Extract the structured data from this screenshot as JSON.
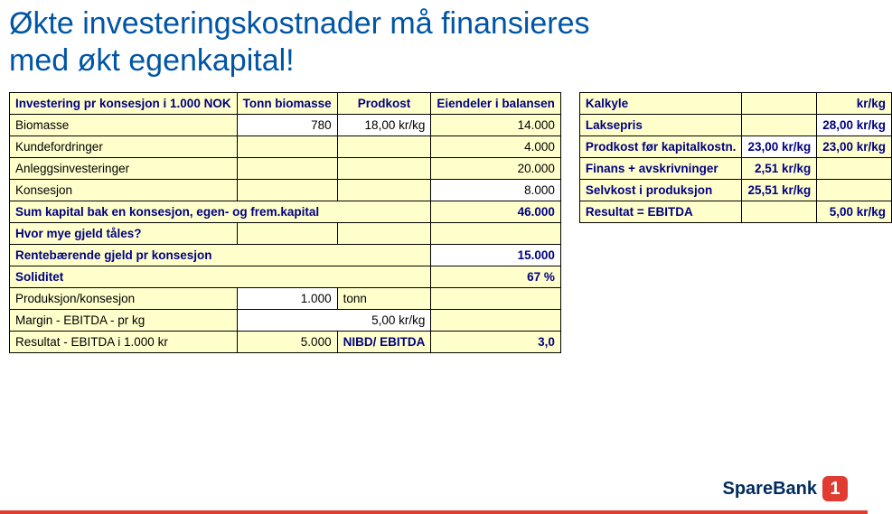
{
  "title_line1": "Økte investeringskostnader må finansieres",
  "title_line2": "med økt egenkapital!",
  "left": {
    "hdr_a": "Investering pr konsesjon i 1.000 NOK",
    "hdr_b": "Tonn biomasse",
    "hdr_c": "Prodkost",
    "hdr_d": "Eiendeler i balansen",
    "r1_a": "Biomasse",
    "r1_b": "780",
    "r1_c": "18,00 kr/kg",
    "r1_d": "14.000",
    "r2_a": "Kundefordringer",
    "r2_d": "4.000",
    "r3_a": "Anleggsinvesteringer",
    "r3_d": "20.000",
    "r4_a": "Konsesjon",
    "r4_d": "8.000",
    "r5_a": "Sum kapital bak en konsesjon, egen- og frem.kapital",
    "r5_d": "46.000",
    "r6_a": "Hvor mye gjeld tåles?",
    "r7_a": "Rentebærende gjeld pr konsesjon",
    "r7_d": "15.000",
    "r8_a": "Soliditet",
    "r8_d": "67 %",
    "r9_a": "Produksjon/konsesjon",
    "r9_b": "1.000",
    "r9_c": "tonn",
    "r10_a": "Margin - EBITDA - pr kg",
    "r10_b": "5,00 kr/kg",
    "r11_a": "Resultat - EBITDA i 1.000 kr",
    "r11_b": "5.000",
    "r11_c": "NIBD/ EBITDA",
    "r11_d": "3,0"
  },
  "right": {
    "hdr_a": "Kalkyle",
    "hdr_c": "kr/kg",
    "r1_a": "Laksepris",
    "r1_c": "28,00 kr/kg",
    "r2_a": "Prodkost før kapitalkostn.",
    "r2_b": "23,00 kr/kg",
    "r2_c": "23,00 kr/kg",
    "r3_a": "Finans + avskrivninger",
    "r3_b": "2,51 kr/kg",
    "r4_a": "Selvkost i produksjon",
    "r4_b": "25,51 kr/kg",
    "r5_a": "Resultat = EBITDA",
    "r5_c": "5,00 kr/kg"
  },
  "brand": {
    "name": "SpareBank",
    "badge": "1"
  },
  "colors": {
    "title": "#0055a5",
    "cell_bg": "#ffffcc",
    "cell_white": "#ffffff",
    "border": "#000000",
    "bold_text": "#000080",
    "brand_red": "#e03c31",
    "brand_navy": "#002b5c"
  }
}
